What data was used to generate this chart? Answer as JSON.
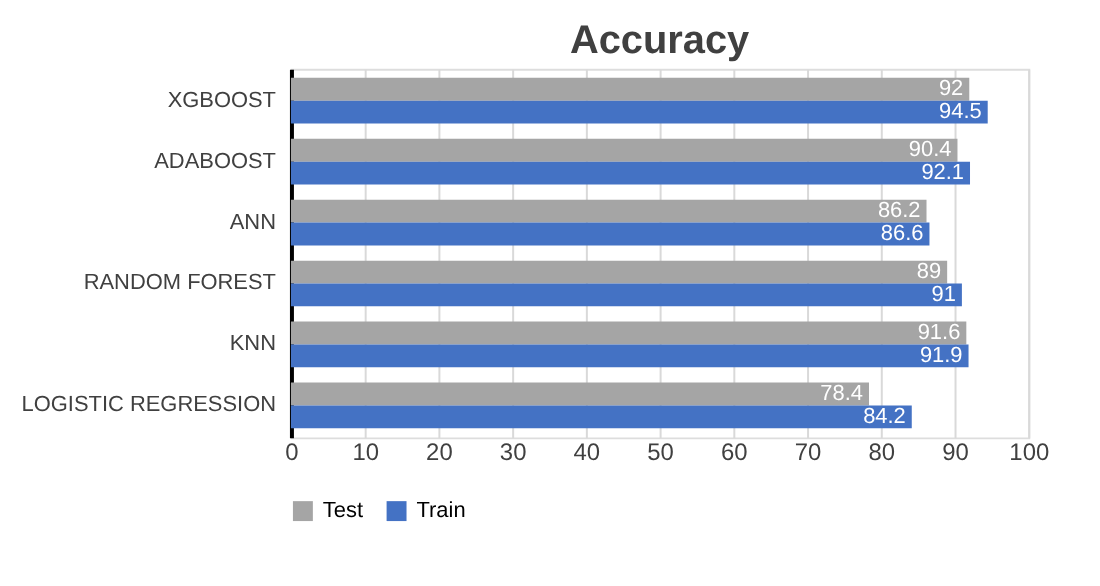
{
  "chart_data": {
    "type": "bar",
    "orientation": "horizontal",
    "title": "Accuracy",
    "categories": [
      "XGBOOST",
      "ADABOOST",
      "ANN",
      "RANDOM FOREST",
      "KNN",
      "LOGISTIC REGRESSION"
    ],
    "series": [
      {
        "name": "Test",
        "color": "#a5a5a5",
        "values": [
          92,
          90.4,
          86.2,
          89,
          91.6,
          78.4
        ]
      },
      {
        "name": "Train",
        "color": "#4472c4",
        "values": [
          94.5,
          92.1,
          86.6,
          91,
          91.9,
          84.2
        ]
      }
    ],
    "xlim": [
      0,
      100
    ],
    "xticks": [
      0,
      10,
      20,
      30,
      40,
      50,
      60,
      70,
      80,
      90,
      100
    ],
    "grid": "x",
    "legend": "bottom",
    "data_labels": true
  }
}
